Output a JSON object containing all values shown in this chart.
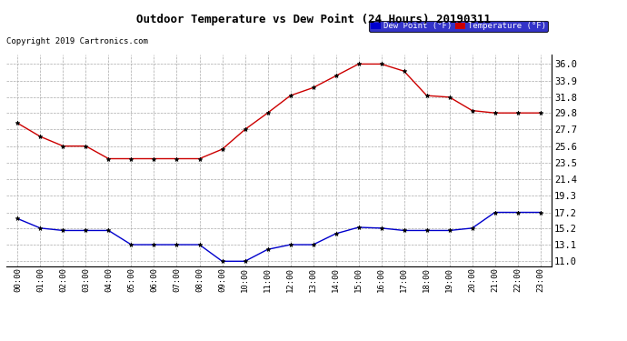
{
  "title": "Outdoor Temperature vs Dew Point (24 Hours) 20190311",
  "copyright": "Copyright 2019 Cartronics.com",
  "x_labels": [
    "00:00",
    "01:00",
    "02:00",
    "03:00",
    "04:00",
    "05:00",
    "06:00",
    "07:00",
    "08:00",
    "09:00",
    "10:00",
    "11:00",
    "12:00",
    "13:00",
    "14:00",
    "15:00",
    "16:00",
    "17:00",
    "18:00",
    "19:00",
    "20:00",
    "21:00",
    "22:00",
    "23:00"
  ],
  "temperature": [
    28.5,
    26.8,
    25.6,
    25.6,
    24.0,
    24.0,
    24.0,
    24.0,
    24.0,
    25.2,
    27.7,
    29.8,
    32.0,
    33.0,
    34.5,
    36.0,
    36.0,
    35.1,
    32.0,
    31.8,
    30.1,
    29.8,
    29.8,
    29.8
  ],
  "dew_point": [
    16.4,
    15.2,
    14.9,
    14.9,
    14.9,
    13.1,
    13.1,
    13.1,
    13.1,
    11.0,
    11.0,
    12.5,
    13.1,
    13.1,
    14.5,
    15.3,
    15.2,
    14.9,
    14.9,
    14.9,
    15.2,
    17.2,
    17.2,
    17.2
  ],
  "temp_color": "#cc0000",
  "dew_color": "#0000cc",
  "marker": "*",
  "marker_color": "#000000",
  "grid_color": "#aaaaaa",
  "background_color": "#ffffff",
  "plot_background": "#ffffff",
  "y_ticks": [
    11.0,
    13.1,
    15.2,
    17.2,
    19.3,
    21.4,
    23.5,
    25.6,
    27.7,
    29.8,
    31.8,
    33.9,
    36.0
  ],
  "ylim": [
    10.4,
    37.2
  ],
  "legend_dew_label": "Dew Point (°F)",
  "legend_temp_label": "Temperature (°F)"
}
